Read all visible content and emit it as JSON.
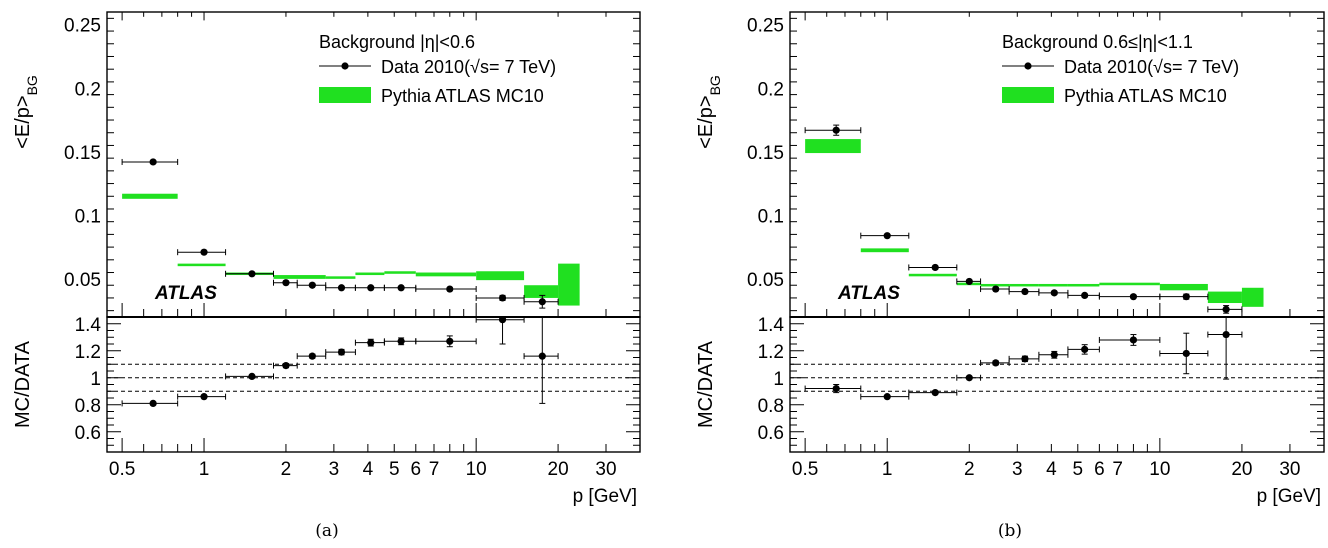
{
  "colors": {
    "mc_band": "#20e020",
    "data_marker": "#000000",
    "axis": "#000000"
  },
  "chart_data": [
    {
      "type": "scatter",
      "panel_caption": "(a)",
      "x_scale": "log",
      "xlim": [
        0.44,
        40
      ],
      "x_ticks": [
        0.5,
        1,
        2,
        3,
        4,
        5,
        6,
        7,
        10,
        20,
        30
      ],
      "x_tick_labels": [
        "0.5",
        "1",
        "2",
        "3",
        "4",
        "5",
        "6",
        "7",
        "10",
        "20",
        "30"
      ],
      "xlabel": "p [GeV]",
      "top": {
        "ylabel_main": "<E/p>",
        "ylabel_sub": "BG",
        "ylim": [
          0.02,
          0.26
        ],
        "y_ticks": [
          0.05,
          0.1,
          0.15,
          0.2,
          0.25
        ],
        "y_tick_labels": [
          "0.05",
          "0.1",
          "0.15",
          "0.2",
          "0.25"
        ],
        "legend_title": "Background |η|<0.6",
        "legend_data_label": "Data 2010(√s= 7 TeV)",
        "legend_mc_label": "Pythia ATLAS MC10",
        "legend_position": "top-right",
        "atlas_label": "ATLAS",
        "series": [
          {
            "name": "Data 2010(√s= 7 TeV)",
            "bins": [
              [
                0.5,
                0.8
              ],
              [
                0.8,
                1.2
              ],
              [
                1.2,
                1.8
              ],
              [
                1.8,
                2.2
              ],
              [
                2.2,
                2.8
              ],
              [
                2.8,
                3.6
              ],
              [
                3.6,
                4.6
              ],
              [
                4.6,
                6
              ],
              [
                6,
                10
              ],
              [
                10,
                15
              ],
              [
                15,
                20
              ]
            ],
            "x": [
              0.65,
              1.0,
              1.5,
              2.0,
              2.5,
              3.2,
              4.1,
              5.3,
              8.0,
              12.5,
              17.5
            ],
            "y": [
              0.142,
              0.071,
              0.054,
              0.047,
              0.045,
              0.043,
              0.043,
              0.043,
              0.042,
              0.035,
              0.032
            ],
            "yerr": [
              0.001,
              0.001,
              0.001,
              0.001,
              0.001,
              0.001,
              0.001,
              0.001,
              0.001,
              0.002,
              0.005
            ]
          },
          {
            "name": "Pythia ATLAS MC10",
            "bins": [
              [
                0.5,
                0.8
              ],
              [
                0.8,
                1.2
              ],
              [
                1.2,
                1.8
              ],
              [
                1.8,
                2.8
              ],
              [
                2.8,
                3.6
              ],
              [
                3.6,
                4.6
              ],
              [
                4.6,
                6
              ],
              [
                6,
                10
              ],
              [
                10,
                15
              ],
              [
                15,
                20
              ],
              [
                20,
                24
              ]
            ],
            "low": [
              0.113,
              0.06,
              0.054,
              0.05,
              0.051,
              0.053,
              0.054,
              0.052,
              0.049,
              0.035,
              0.029
            ],
            "high": [
              0.117,
              0.062,
              0.055,
              0.053,
              0.052,
              0.055,
              0.056,
              0.055,
              0.056,
              0.045,
              0.062
            ]
          }
        ]
      },
      "ratio": {
        "ylabel": "MC/DATA",
        "ylim": [
          0.45,
          1.45
        ],
        "y_ticks": [
          0.6,
          0.8,
          1,
          1.2,
          1.4
        ],
        "y_tick_labels": [
          "0.6",
          "0.8",
          "1",
          "1.2",
          "1.4"
        ],
        "ref_lines": [
          0.9,
          1.0,
          1.1
        ],
        "series": [
          {
            "name": "MC/DATA",
            "bins": [
              [
                0.5,
                0.8
              ],
              [
                0.8,
                1.2
              ],
              [
                1.2,
                1.8
              ],
              [
                1.8,
                2.2
              ],
              [
                2.2,
                2.8
              ],
              [
                2.8,
                3.6
              ],
              [
                3.6,
                4.6
              ],
              [
                4.6,
                6
              ],
              [
                6,
                10
              ],
              [
                10,
                15
              ],
              [
                15,
                20
              ]
            ],
            "x": [
              0.65,
              1.0,
              1.5,
              2.0,
              2.5,
              3.2,
              4.1,
              5.3,
              8.0,
              12.5,
              17.5
            ],
            "y": [
              0.81,
              0.86,
              1.01,
              1.09,
              1.16,
              1.19,
              1.26,
              1.27,
              1.27,
              1.43,
              1.16
            ],
            "yerr": [
              0.01,
              0.01,
              0.01,
              0.015,
              0.015,
              0.02,
              0.025,
              0.025,
              0.04,
              0.18,
              0.35
            ]
          }
        ]
      }
    },
    {
      "type": "scatter",
      "panel_caption": "(b)",
      "x_scale": "log",
      "xlim": [
        0.44,
        40
      ],
      "x_ticks": [
        0.5,
        1,
        2,
        3,
        4,
        5,
        6,
        7,
        10,
        20,
        30
      ],
      "x_tick_labels": [
        "0.5",
        "1",
        "2",
        "3",
        "4",
        "5",
        "6",
        "7",
        "10",
        "20",
        "30"
      ],
      "xlabel": "p [GeV]",
      "top": {
        "ylabel_main": "<E/p>",
        "ylabel_sub": "BG",
        "ylim": [
          0.02,
          0.26
        ],
        "y_ticks": [
          0.05,
          0.1,
          0.15,
          0.2,
          0.25
        ],
        "y_tick_labels": [
          "0.05",
          "0.1",
          "0.15",
          "0.2",
          "0.25"
        ],
        "legend_title": "Background 0.6≤|η|<1.1",
        "legend_data_label": "Data 2010(√s= 7 TeV)",
        "legend_mc_label": "Pythia ATLAS MC10",
        "legend_position": "top-right",
        "atlas_label": "ATLAS",
        "series": [
          {
            "name": "Data 2010(√s= 7 TeV)",
            "bins": [
              [
                0.5,
                0.8
              ],
              [
                0.8,
                1.2
              ],
              [
                1.2,
                1.8
              ],
              [
                1.8,
                2.2
              ],
              [
                2.2,
                2.8
              ],
              [
                2.8,
                3.6
              ],
              [
                3.6,
                4.6
              ],
              [
                4.6,
                6
              ],
              [
                6,
                10
              ],
              [
                10,
                15
              ],
              [
                15,
                20
              ]
            ],
            "x": [
              0.65,
              1.0,
              1.5,
              2.0,
              2.5,
              3.2,
              4.1,
              5.3,
              8.0,
              12.5,
              17.5
            ],
            "y": [
              0.167,
              0.084,
              0.059,
              0.048,
              0.042,
              0.04,
              0.039,
              0.037,
              0.036,
              0.036,
              0.026
            ],
            "yerr": [
              0.004,
              0.001,
              0.001,
              0.001,
              0.001,
              0.001,
              0.001,
              0.001,
              0.001,
              0.002,
              0.003
            ]
          },
          {
            "name": "Pythia ATLAS MC10",
            "bins": [
              [
                0.5,
                0.8
              ],
              [
                0.8,
                1.2
              ],
              [
                1.2,
                1.8
              ],
              [
                1.8,
                2.2
              ],
              [
                2.2,
                2.8
              ],
              [
                2.8,
                3.6
              ],
              [
                3.6,
                4.6
              ],
              [
                4.6,
                6
              ],
              [
                6,
                10
              ],
              [
                10,
                15
              ],
              [
                15,
                20
              ],
              [
                20,
                24
              ]
            ],
            "low": [
              0.149,
              0.071,
              0.052,
              0.046,
              0.045,
              0.045,
              0.044,
              0.044,
              0.045,
              0.041,
              0.031,
              0.028
            ],
            "high": [
              0.16,
              0.074,
              0.054,
              0.047,
              0.046,
              0.046,
              0.046,
              0.046,
              0.047,
              0.046,
              0.04,
              0.043
            ]
          }
        ]
      },
      "ratio": {
        "ylabel": "MC/DATA",
        "ylim": [
          0.45,
          1.45
        ],
        "y_ticks": [
          0.6,
          0.8,
          1,
          1.2,
          1.4
        ],
        "y_tick_labels": [
          "0.6",
          "0.8",
          "1",
          "1.2",
          "1.4"
        ],
        "ref_lines": [
          0.9,
          1.0,
          1.1
        ],
        "series": [
          {
            "name": "MC/DATA",
            "bins": [
              [
                0.5,
                0.8
              ],
              [
                0.8,
                1.2
              ],
              [
                1.2,
                1.8
              ],
              [
                1.8,
                2.2
              ],
              [
                2.2,
                2.8
              ],
              [
                2.8,
                3.6
              ],
              [
                3.6,
                4.6
              ],
              [
                4.6,
                6
              ],
              [
                6,
                10
              ],
              [
                10,
                15
              ],
              [
                15,
                20
              ]
            ],
            "x": [
              0.65,
              1.0,
              1.5,
              2.0,
              2.5,
              3.2,
              4.1,
              5.3,
              8.0,
              12.5,
              17.5
            ],
            "y": [
              0.92,
              0.86,
              0.89,
              1.0,
              1.11,
              1.14,
              1.17,
              1.21,
              1.28,
              1.18,
              1.32
            ],
            "yerr": [
              0.03,
              0.01,
              0.01,
              0.01,
              0.015,
              0.02,
              0.025,
              0.035,
              0.04,
              0.15,
              0.33
            ]
          }
        ]
      }
    }
  ]
}
